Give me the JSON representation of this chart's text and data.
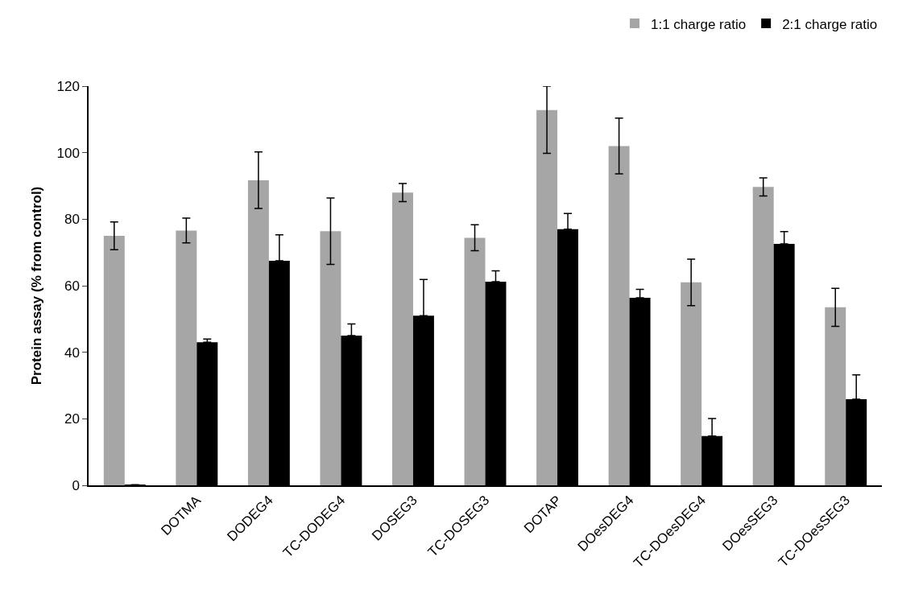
{
  "chart_data": {
    "type": "bar",
    "ylabel": "Protein assay (% from control)",
    "categories": [
      null,
      "DOTMA",
      "DODEG4",
      "TC-DODEG4",
      "DOSEG3",
      "TC-DOSEG3",
      "DOTAP",
      "DOesDEG4",
      "TC-DOesDEG4",
      "DOesSEG3",
      "TC-DOesSEG3"
    ],
    "series": [
      {
        "name": "1:1 charge ratio",
        "color": "#a6a6a6",
        "values": [
          75,
          76.6,
          91.7,
          76.4,
          88,
          74.4,
          112.8,
          102,
          61,
          89.7,
          53.5
        ],
        "errors": [
          4.2,
          3.7,
          8.5,
          10,
          2.7,
          3.9,
          [
            99.8,
            120
          ],
          8.4,
          7,
          2.7,
          5.7
        ]
      },
      {
        "name": "2:1 charge ratio",
        "color": "#000000",
        "values": [
          0.2,
          43,
          67.5,
          45,
          51,
          61.2,
          77,
          56.4,
          14.8,
          72.6,
          25.9
        ],
        "errors": [
          null,
          [
            43,
            44
          ],
          [
            67.5,
            75.3
          ],
          [
            45,
            48.5
          ],
          [
            51,
            61.9
          ],
          [
            61.2,
            64.5
          ],
          [
            77,
            81.7
          ],
          [
            56.4,
            58.9
          ],
          [
            14.8,
            20.1
          ],
          [
            72.6,
            76.3
          ],
          [
            25.9,
            33.2
          ]
        ]
      }
    ],
    "ylim": [
      0,
      120
    ],
    "yticks": [
      0,
      20,
      40,
      60,
      80,
      100,
      120
    ],
    "legend": "top right"
  }
}
